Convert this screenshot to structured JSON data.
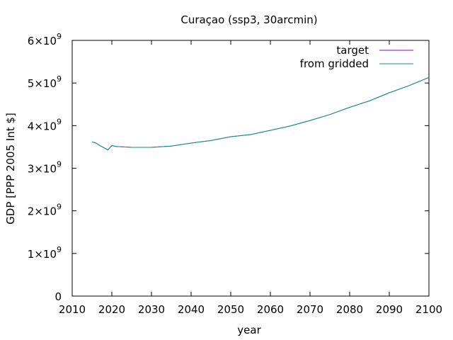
{
  "chart_data": {
    "type": "line",
    "title": "Curaçao (ssp3, 30arcmin)",
    "xlabel": "year",
    "ylabel": "GDP [PPP 2005 Int $]",
    "xlim": [
      2010,
      2100
    ],
    "ylim": [
      0,
      6000000000
    ],
    "x_ticks": [
      2010,
      2020,
      2030,
      2040,
      2050,
      2060,
      2070,
      2080,
      2090,
      2100
    ],
    "y_ticks": [
      {
        "value": 0,
        "mantissa": "0",
        "exponent": ""
      },
      {
        "value": 1000000000,
        "mantissa": "1×10",
        "exponent": "9"
      },
      {
        "value": 2000000000,
        "mantissa": "2×10",
        "exponent": "9"
      },
      {
        "value": 3000000000,
        "mantissa": "3×10",
        "exponent": "9"
      },
      {
        "value": 4000000000,
        "mantissa": "4×10",
        "exponent": "9"
      },
      {
        "value": 5000000000,
        "mantissa": "5×10",
        "exponent": "9"
      },
      {
        "value": 6000000000,
        "mantissa": "6×10",
        "exponent": "9"
      }
    ],
    "grid": false,
    "legend_position": "top-right",
    "series": [
      {
        "name": "target",
        "color": "#9400d3",
        "x": [
          2015,
          2016,
          2017,
          2018,
          2019,
          2020,
          2021,
          2025,
          2030,
          2035,
          2040,
          2045,
          2050,
          2055,
          2060,
          2065,
          2070,
          2075,
          2080,
          2085,
          2090,
          2095,
          2100
        ],
        "y": [
          3620000000,
          3590000000,
          3530000000,
          3480000000,
          3430000000,
          3530000000,
          3510000000,
          3490000000,
          3490000000,
          3520000000,
          3590000000,
          3650000000,
          3740000000,
          3790000000,
          3890000000,
          3990000000,
          4120000000,
          4260000000,
          4430000000,
          4580000000,
          4770000000,
          4940000000,
          5130000000
        ]
      },
      {
        "name": "from gridded",
        "color": "#009e73",
        "x": [
          2015,
          2016,
          2017,
          2018,
          2019,
          2020,
          2021,
          2025,
          2030,
          2035,
          2040,
          2045,
          2050,
          2055,
          2060,
          2065,
          2070,
          2075,
          2080,
          2085,
          2090,
          2095,
          2100
        ],
        "y": [
          3620000000,
          3590000000,
          3530000000,
          3480000000,
          3430000000,
          3530000000,
          3510000000,
          3490000000,
          3490000000,
          3520000000,
          3590000000,
          3650000000,
          3740000000,
          3790000000,
          3890000000,
          3990000000,
          4120000000,
          4260000000,
          4430000000,
          4580000000,
          4770000000,
          4940000000,
          5130000000
        ]
      }
    ]
  }
}
